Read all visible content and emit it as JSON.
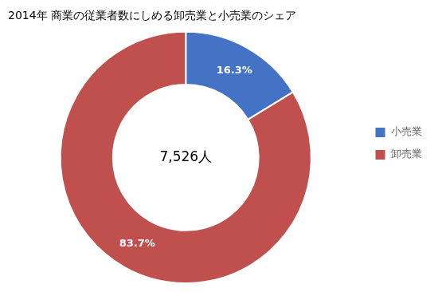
{
  "chart_data": {
    "type": "donut",
    "title": "2014年 商業の従業者数にしめる卸売業と小売業のシェア",
    "categories": [
      "小売業",
      "卸売業"
    ],
    "values": [
      16.3,
      83.7
    ],
    "value_labels": [
      "16.3%",
      "83.7%"
    ],
    "colors": [
      "#4472C4",
      "#C0504D"
    ],
    "data_labels": true,
    "annotation": "7,526人",
    "legend": "right"
  }
}
